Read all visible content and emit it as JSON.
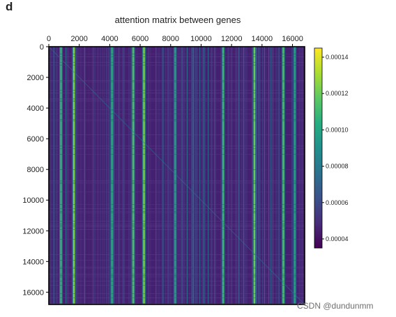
{
  "panel_label": "d",
  "watermark": "CSDN @dundunmm",
  "chart_data": {
    "type": "heatmap",
    "title": "attention matrix between genes",
    "x_ticks": [
      0,
      2000,
      4000,
      6000,
      8000,
      10000,
      12000,
      14000,
      16000
    ],
    "y_ticks": [
      0,
      2000,
      4000,
      6000,
      8000,
      10000,
      12000,
      14000,
      16000
    ],
    "x_tick_position": "top",
    "xlim": [
      0,
      16800
    ],
    "ylim": [
      16800,
      0
    ],
    "colorbar": {
      "colormap": "viridis",
      "range": [
        3.5e-05,
        0.000145
      ],
      "ticks": [
        "0.00004",
        "0.00006",
        "0.00008",
        "0.00010",
        "0.00012",
        "0.00014"
      ],
      "position": "right"
    },
    "bright_columns_approx": [
      {
        "x": 800,
        "value": 0.00011
      },
      {
        "x": 1650,
        "value": 0.000125
      },
      {
        "x": 4150,
        "value": 0.000105
      },
      {
        "x": 5550,
        "value": 0.000115
      },
      {
        "x": 6250,
        "value": 0.000125
      },
      {
        "x": 8300,
        "value": 0.0001
      },
      {
        "x": 11450,
        "value": 0.00011
      },
      {
        "x": 13500,
        "value": 0.00012
      },
      {
        "x": 15400,
        "value": 0.000115
      },
      {
        "x": 16150,
        "value": 0.0001
      }
    ],
    "baseline_value_approx": 4.5e-05
  }
}
